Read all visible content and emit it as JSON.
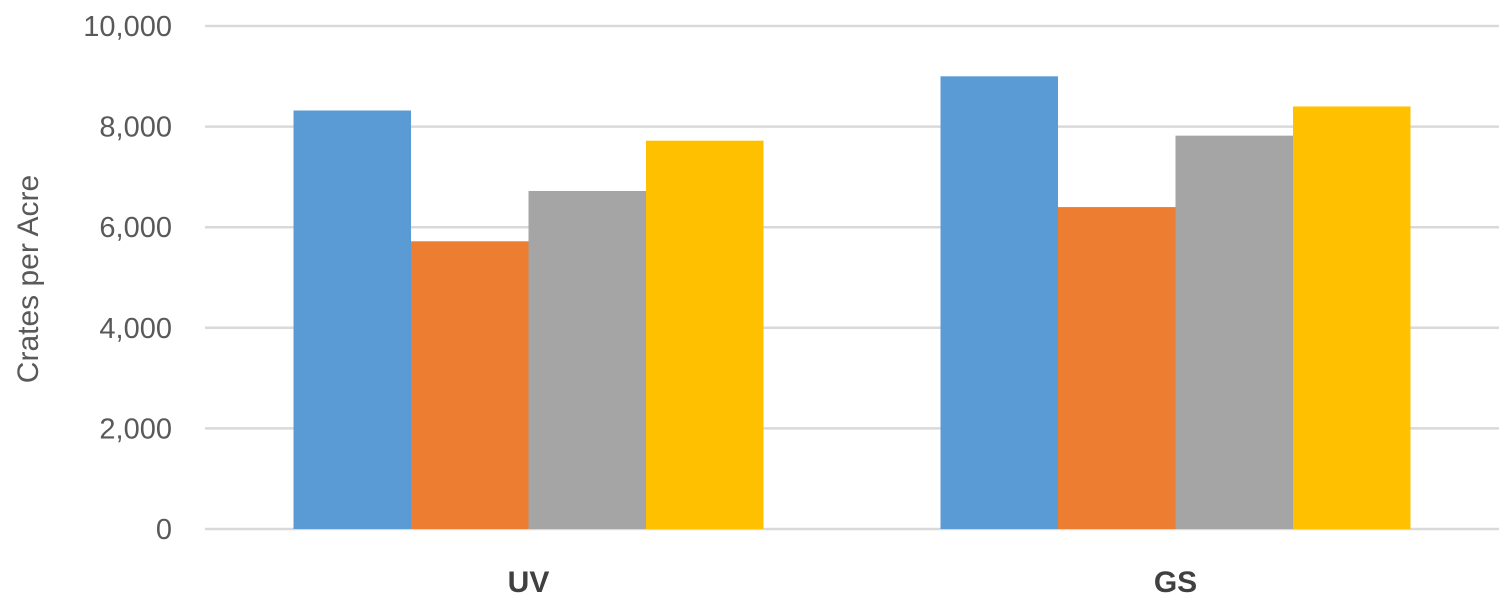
{
  "chart_data": {
    "type": "bar",
    "title": "",
    "xlabel": "",
    "ylabel": "Crates per Acre",
    "categories": [
      "UV",
      "GS"
    ],
    "series": [
      {
        "values": [
          8320,
          9000
        ],
        "color": "#5B9BD5"
      },
      {
        "values": [
          5720,
          6400
        ],
        "color": "#ED7D31"
      },
      {
        "values": [
          6720,
          7820
        ],
        "color": "#A5A5A5"
      },
      {
        "values": [
          7720,
          8400
        ],
        "color": "#FFC000"
      }
    ],
    "ylim": [
      0,
      10000
    ],
    "yticks": [
      0,
      2000,
      4000,
      6000,
      8000,
      10000
    ],
    "ytick_labels": [
      "0",
      "2,000",
      "4,000",
      "6,000",
      "8,000",
      "10,000"
    ],
    "grid": true,
    "legend": "none"
  }
}
